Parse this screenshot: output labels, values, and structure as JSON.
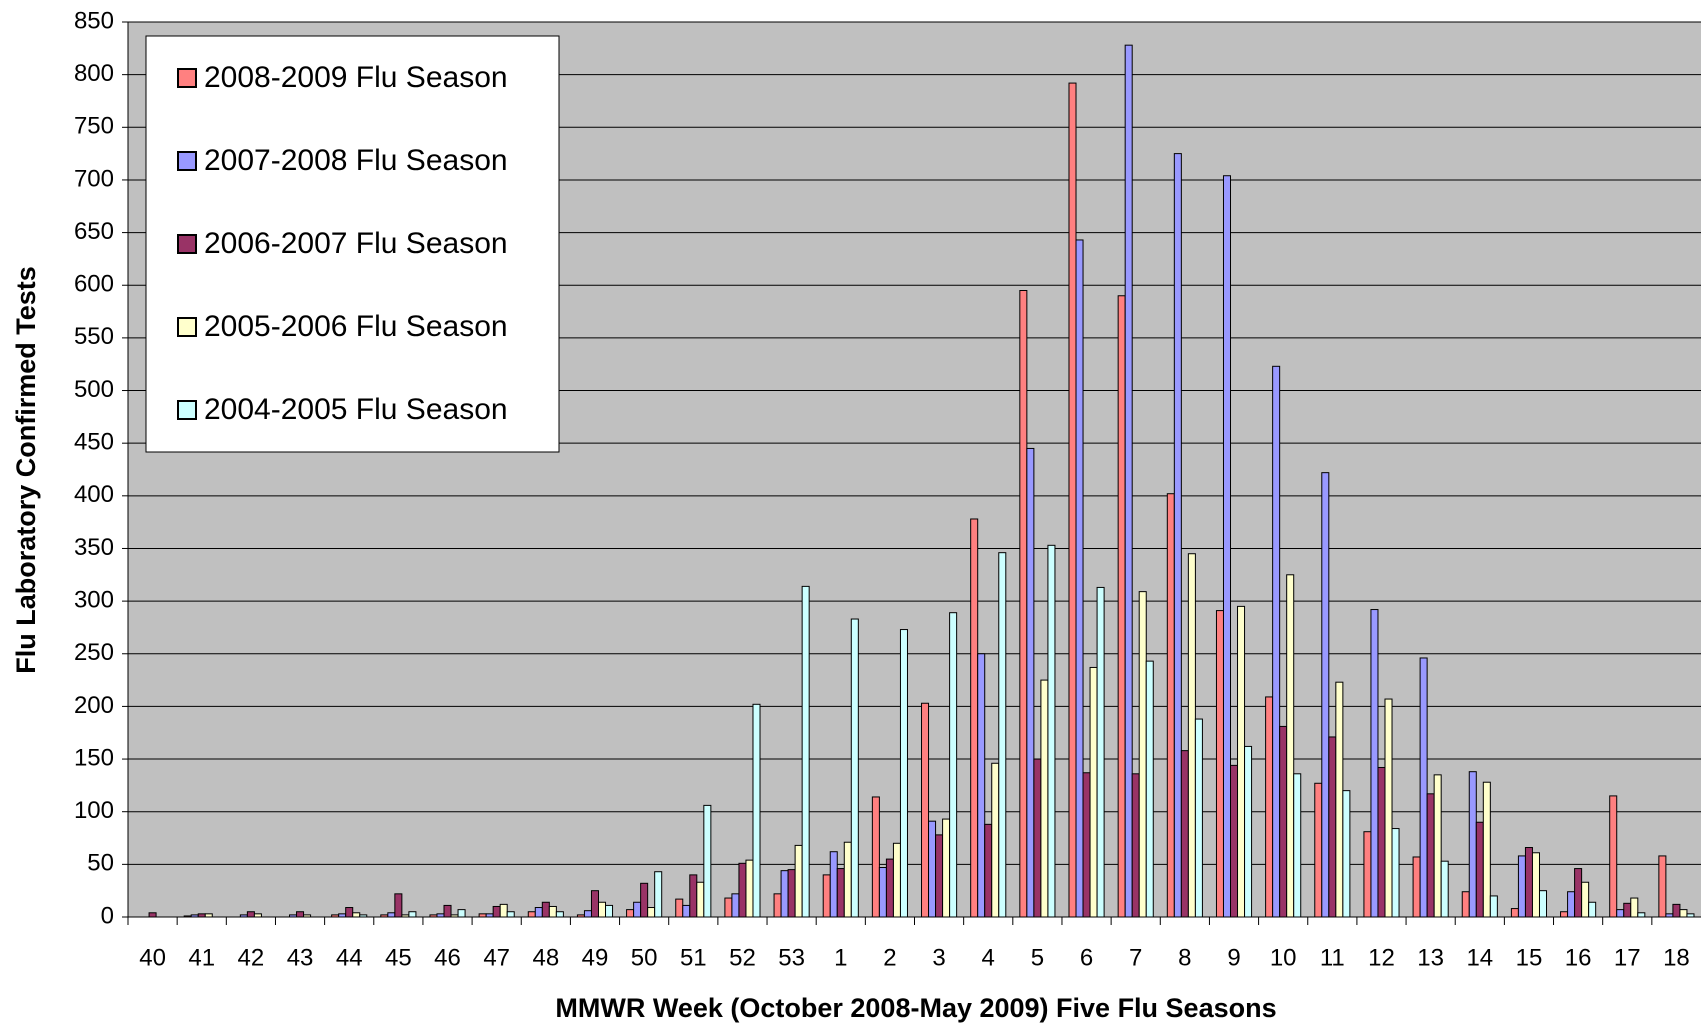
{
  "chart_data": {
    "type": "bar",
    "x_label": "MMWR Week (October 2008-May 2009) Five Flu Seasons",
    "y_label": "Flu Laboratory Confirmed Tests",
    "categories": [
      "40",
      "41",
      "42",
      "43",
      "44",
      "45",
      "46",
      "47",
      "48",
      "49",
      "50",
      "51",
      "52",
      "53",
      "1",
      "2",
      "3",
      "4",
      "5",
      "6",
      "7",
      "8",
      "9",
      "10",
      "11",
      "12",
      "13",
      "14",
      "15",
      "16",
      "17",
      "18"
    ],
    "series": [
      {
        "name": "2008-2009 Flu Season",
        "color": "#ff8080",
        "values": [
          0,
          1,
          0,
          0,
          2,
          2,
          2,
          3,
          5,
          2,
          7,
          17,
          18,
          22,
          40,
          114,
          203,
          378,
          595,
          792,
          590,
          402,
          291,
          209,
          127,
          81,
          57,
          24,
          8,
          5,
          115,
          58
        ]
      },
      {
        "name": "2007-2008 Flu Season",
        "color": "#9999ff",
        "values": [
          0,
          2,
          2,
          2,
          3,
          4,
          3,
          3,
          9,
          6,
          14,
          11,
          22,
          44,
          62,
          47,
          91,
          250,
          445,
          643,
          828,
          725,
          704,
          523,
          422,
          292,
          246,
          138,
          58,
          24,
          7,
          3
        ]
      },
      {
        "name": "2006-2007 Flu Season",
        "color": "#993366",
        "values": [
          4,
          3,
          5,
          5,
          9,
          22,
          11,
          10,
          14,
          25,
          32,
          40,
          51,
          45,
          46,
          55,
          78,
          88,
          150,
          137,
          136,
          158,
          144,
          181,
          171,
          142,
          117,
          90,
          66,
          46,
          13,
          12
        ]
      },
      {
        "name": "2005-2006 Flu Season",
        "color": "#ffffcc",
        "values": [
          0,
          3,
          3,
          2,
          4,
          2,
          2,
          12,
          10,
          14,
          9,
          33,
          54,
          68,
          71,
          70,
          93,
          146,
          225,
          237,
          309,
          345,
          295,
          325,
          223,
          207,
          135,
          128,
          61,
          33,
          18,
          7
        ]
      },
      {
        "name": "2004-2005 Flu Season",
        "color": "#ccffff",
        "values": [
          0,
          0,
          0,
          0,
          2,
          5,
          7,
          5,
          5,
          11,
          43,
          106,
          202,
          314,
          283,
          273,
          289,
          346,
          353,
          313,
          243,
          188,
          162,
          136,
          120,
          84,
          53,
          20,
          25,
          14,
          4,
          3
        ]
      }
    ],
    "ylim": [
      0,
      850
    ],
    "yticks": [
      0,
      50,
      100,
      150,
      200,
      250,
      300,
      350,
      400,
      450,
      500,
      550,
      600,
      650,
      700,
      750,
      800,
      850
    ],
    "grid": true,
    "legend": "top-left"
  }
}
